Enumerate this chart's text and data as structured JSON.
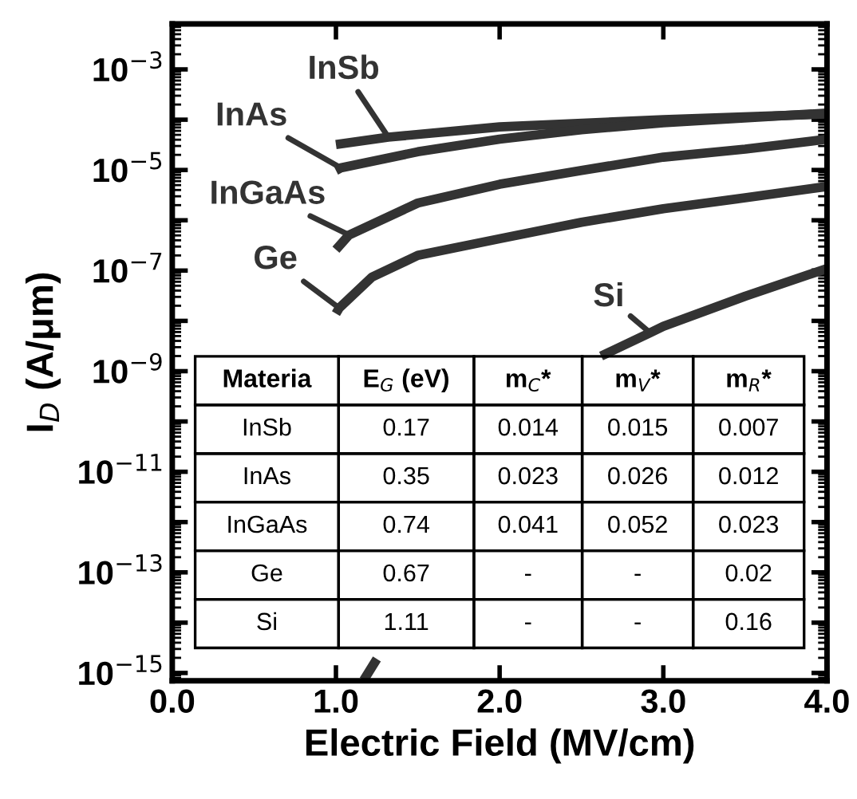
{
  "chart_data": {
    "type": "line",
    "xlabel": "Electric Field (MV/cm)",
    "ylabel": "I$_{D}$ (A/μm)",
    "log": "y",
    "grid": false,
    "legend": false,
    "marker": "none",
    "line_style": "solid",
    "xlim": [
      0,
      4
    ],
    "xticks": [
      {
        "value": 0,
        "label": "0.0"
      },
      {
        "value": 1,
        "label": "1.0"
      },
      {
        "value": 2,
        "label": "2.0"
      },
      {
        "value": 3,
        "label": "3.0"
      },
      {
        "value": 4,
        "label": "4.0"
      }
    ],
    "ylim": [
      7e-16,
      0.008
    ],
    "yticks": [
      {
        "value": 1e-15,
        "label": "10$^{−15}$"
      },
      {
        "value": 1e-14,
        "label": null
      },
      {
        "value": 1e-13,
        "label": "10$^{−13}$"
      },
      {
        "value": 1e-12,
        "label": null
      },
      {
        "value": 1e-11,
        "label": "10$^{−11}$"
      },
      {
        "value": 1e-10,
        "label": null
      },
      {
        "value": 1e-09,
        "label": "10$^{−9}$"
      },
      {
        "value": 1e-08,
        "label": null
      },
      {
        "value": 1e-07,
        "label": "10$^{−7}$"
      },
      {
        "value": 1e-06,
        "label": null
      },
      {
        "value": 1e-05,
        "label": "10$^{−5}$"
      },
      {
        "value": 0.0001,
        "label": null
      },
      {
        "value": 0.001,
        "label": "10$^{−3}$"
      }
    ],
    "series": [
      {
        "name": "InSb",
        "color": "#333333",
        "x": [
          1.0,
          1.32,
          2.0,
          3.0,
          4.0
        ],
        "values": [
          3.2e-05,
          4.5e-05,
          7.2e-05,
          0.0001,
          0.00013
        ]
      },
      {
        "name": "InAs",
        "color": "#333333",
        "x": [
          1.0,
          1.03,
          1.5,
          2.0,
          2.5,
          3.0,
          4.0
        ],
        "values": [
          9.8e-06,
          1.1e-05,
          2.3e-05,
          4.1e-05,
          6.3e-05,
          8.7e-05,
          0.000135
        ]
      },
      {
        "name": "InGaAs",
        "color": "#333333",
        "x": [
          1.0,
          1.08,
          1.5,
          2.0,
          2.5,
          3.0,
          3.5,
          4.0
        ],
        "values": [
          2.6e-07,
          5.1e-07,
          2.2e-06,
          5.2e-06,
          9.8e-06,
          1.8e-05,
          2.6e-05,
          4.1e-05
        ]
      },
      {
        "name": "Ge",
        "color": "#333333",
        "x": [
          1.0,
          1.02,
          1.22,
          1.5,
          2.0,
          2.5,
          3.0,
          3.5,
          4.0
        ],
        "values": [
          1.4e-08,
          1.8e-08,
          7.4e-08,
          2e-07,
          4.3e-07,
          9.1e-07,
          1.7e-06,
          2.8e-06,
          4.7e-06
        ]
      },
      {
        "name": "Si",
        "color": "#333333",
        "x": [
          1.17,
          1.25,
          2.0,
          2.62,
          2.92,
          3.0,
          3.5,
          4.0
        ],
        "values": [
          7.2e-16,
          1.9e-15,
          null,
          2e-09,
          5.8e-09,
          7.8e-09,
          3.1e-08,
          1.1e-07
        ]
      }
    ],
    "annotations": [
      "Materia",
      "E$_{G}$ (eV)",
      "m$_{C}$*",
      "m$_{V}$*",
      "m$_{R}$*",
      "InSb",
      "0.17",
      "0.014",
      "0.015",
      "0.007",
      "InAs",
      "0.35",
      "0.023",
      "0.026",
      "0.012",
      "InGaAs",
      "0.74",
      "0.041",
      "0.052",
      "0.023",
      "Ge",
      "0.67",
      "-",
      "-",
      "0.02",
      "Si",
      "1.11",
      "-",
      "-",
      "0.16"
    ]
  }
}
